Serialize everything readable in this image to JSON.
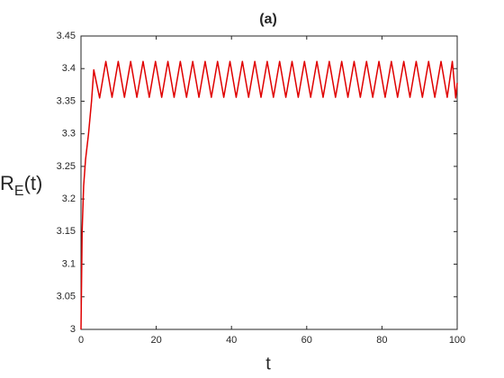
{
  "chart_data": {
    "type": "line",
    "title": "(a)",
    "xlabel": "t",
    "ylabel": {
      "main": "R",
      "sub": "E",
      "tail": "(t)"
    },
    "xlim": [
      0,
      100
    ],
    "ylim": [
      3,
      3.45
    ],
    "xticks": [
      0,
      20,
      40,
      60,
      80,
      100
    ],
    "yticks": [
      3,
      3.05,
      3.1,
      3.15,
      3.2,
      3.25,
      3.3,
      3.35,
      3.4,
      3.45
    ],
    "series": [
      {
        "color": "#e00000",
        "x": [
          0,
          0.3,
          0.7,
          1.2,
          2,
          2.8,
          3.4,
          4.95,
          6.6,
          8.25,
          9.9,
          11.55,
          13.2,
          14.85,
          16.5,
          18.15,
          19.8,
          21.45,
          23.1,
          24.75,
          26.4,
          28.05,
          29.7,
          31.35,
          33,
          34.65,
          36.3,
          37.95,
          39.6,
          41.25,
          42.9,
          44.55,
          46.2,
          47.85,
          49.5,
          51.15,
          52.8,
          54.45,
          56.1,
          57.75,
          59.4,
          61.05,
          62.7,
          64.35,
          66,
          67.65,
          69.3,
          70.95,
          72.6,
          74.25,
          75.9,
          77.55,
          79.2,
          80.85,
          82.5,
          84.15,
          85.8,
          87.45,
          89.1,
          90.75,
          92.4,
          94.05,
          95.7,
          97.35,
          98.7,
          99.6,
          100
        ],
        "values": [
          3,
          3.15,
          3.22,
          3.26,
          3.3,
          3.35,
          3.398,
          3.355,
          3.411,
          3.356,
          3.411,
          3.356,
          3.411,
          3.356,
          3.411,
          3.356,
          3.411,
          3.356,
          3.411,
          3.356,
          3.411,
          3.356,
          3.411,
          3.356,
          3.411,
          3.356,
          3.411,
          3.356,
          3.411,
          3.356,
          3.411,
          3.356,
          3.411,
          3.356,
          3.411,
          3.356,
          3.411,
          3.356,
          3.411,
          3.356,
          3.411,
          3.356,
          3.411,
          3.356,
          3.411,
          3.356,
          3.411,
          3.356,
          3.411,
          3.356,
          3.411,
          3.356,
          3.411,
          3.356,
          3.411,
          3.356,
          3.411,
          3.356,
          3.411,
          3.356,
          3.411,
          3.356,
          3.411,
          3.356,
          3.411,
          3.355,
          3.378
        ]
      }
    ]
  }
}
